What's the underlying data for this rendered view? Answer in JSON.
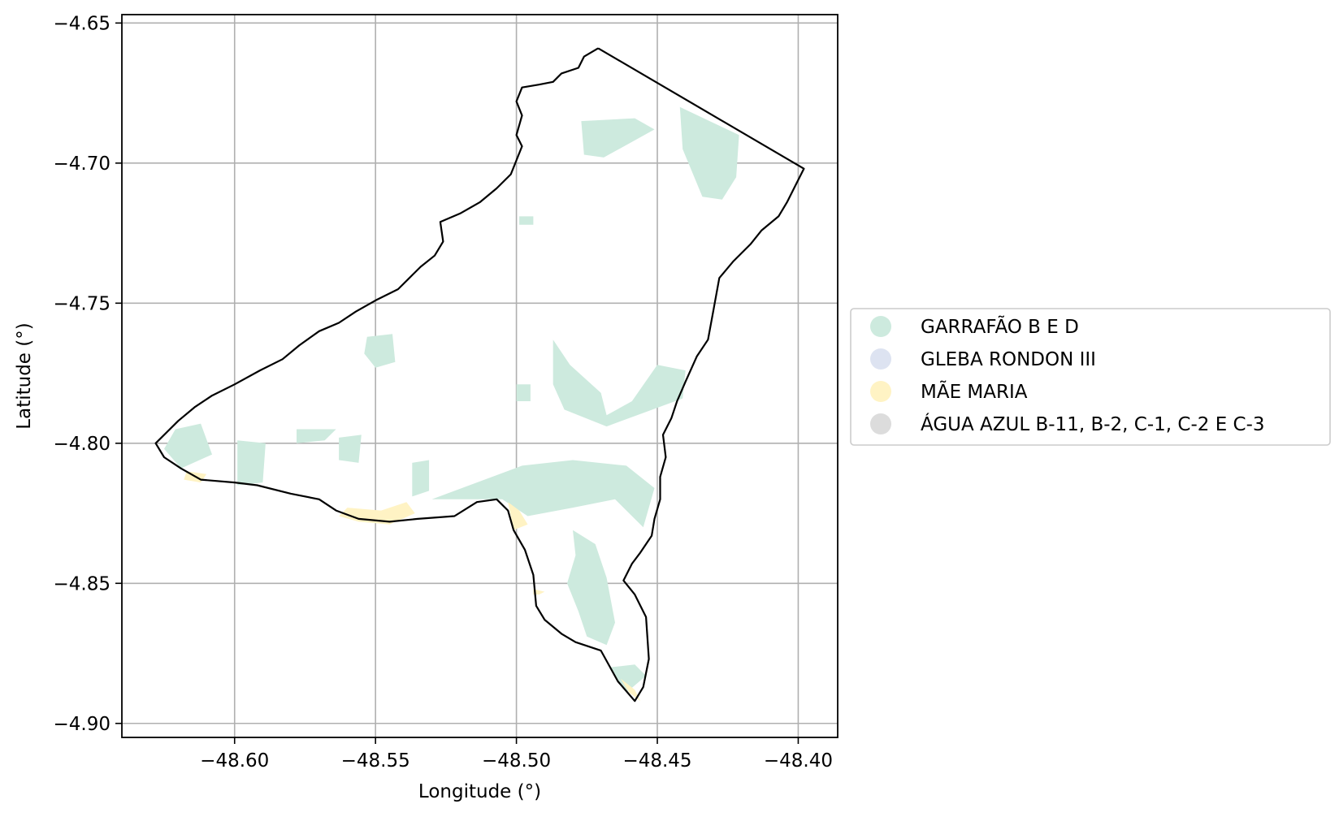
{
  "colors": {
    "garrafao": "#cdeade",
    "gleba_rondon": "#dde3f1",
    "mae_maria": "#fff3c4",
    "agua_azul": "#dcdcdc",
    "boundary": "#000000",
    "grid": "#b0b0b0"
  },
  "axes": {
    "xlabel": "Longitude (°)",
    "ylabel": "Latitude (°)",
    "xlim": [
      -48.64,
      -48.386
    ],
    "ylim": [
      -4.905,
      -4.647
    ],
    "xticks": [
      {
        "value": -48.6,
        "label": "−48.60"
      },
      {
        "value": -48.55,
        "label": "−48.55"
      },
      {
        "value": -48.5,
        "label": "−48.50"
      },
      {
        "value": -48.45,
        "label": "−48.45"
      },
      {
        "value": -48.4,
        "label": "−48.40"
      }
    ],
    "yticks": [
      {
        "value": -4.65,
        "label": "−4.65"
      },
      {
        "value": -4.7,
        "label": "−4.70"
      },
      {
        "value": -4.75,
        "label": "−4.75"
      },
      {
        "value": -4.8,
        "label": "−4.80"
      },
      {
        "value": -4.85,
        "label": "−4.85"
      },
      {
        "value": -4.9,
        "label": "−4.90"
      }
    ],
    "grid": true
  },
  "legend": {
    "placement": "right",
    "items": [
      {
        "label": "GARRAFÃO B E D",
        "color": "#cdeade"
      },
      {
        "label": "GLEBA RONDON III",
        "color": "#dde3f1"
      },
      {
        "label": "MÃE MARIA",
        "color": "#fff3c4"
      },
      {
        "label": "ÁGUA AZUL B-11, B-2, C-1, C-2 E C-3",
        "color": "#dcdcdc"
      }
    ]
  },
  "map": {
    "boundary": [
      [
        -48.471,
        -4.659
      ],
      [
        -48.476,
        -4.662
      ],
      [
        -48.478,
        -4.666
      ],
      [
        -48.484,
        -4.668
      ],
      [
        -48.487,
        -4.671
      ],
      [
        -48.492,
        -4.672
      ],
      [
        -48.498,
        -4.673
      ],
      [
        -48.5,
        -4.678
      ],
      [
        -48.498,
        -4.683
      ],
      [
        -48.5,
        -4.69
      ],
      [
        -48.498,
        -4.694
      ],
      [
        -48.5,
        -4.699
      ],
      [
        -48.502,
        -4.704
      ],
      [
        -48.507,
        -4.709
      ],
      [
        -48.513,
        -4.714
      ],
      [
        -48.52,
        -4.718
      ],
      [
        -48.527,
        -4.721
      ],
      [
        -48.526,
        -4.728
      ],
      [
        -48.529,
        -4.733
      ],
      [
        -48.534,
        -4.737
      ],
      [
        -48.538,
        -4.741
      ],
      [
        -48.542,
        -4.745
      ],
      [
        -48.55,
        -4.749
      ],
      [
        -48.557,
        -4.753
      ],
      [
        -48.563,
        -4.757
      ],
      [
        -48.57,
        -4.76
      ],
      [
        -48.577,
        -4.765
      ],
      [
        -48.583,
        -4.77
      ],
      [
        -48.591,
        -4.774
      ],
      [
        -48.6,
        -4.779
      ],
      [
        -48.608,
        -4.783
      ],
      [
        -48.614,
        -4.787
      ],
      [
        -48.62,
        -4.792
      ],
      [
        -48.624,
        -4.796
      ],
      [
        -48.628,
        -4.8
      ],
      [
        -48.625,
        -4.805
      ],
      [
        -48.619,
        -4.809
      ],
      [
        -48.612,
        -4.813
      ],
      [
        -48.6,
        -4.814
      ],
      [
        -48.592,
        -4.815
      ],
      [
        -48.58,
        -4.818
      ],
      [
        -48.57,
        -4.82
      ],
      [
        -48.564,
        -4.824
      ],
      [
        -48.556,
        -4.827
      ],
      [
        -48.545,
        -4.828
      ],
      [
        -48.535,
        -4.827
      ],
      [
        -48.522,
        -4.826
      ],
      [
        -48.514,
        -4.821
      ],
      [
        -48.507,
        -4.82
      ],
      [
        -48.503,
        -4.824
      ],
      [
        -48.501,
        -4.831
      ],
      [
        -48.497,
        -4.838
      ],
      [
        -48.494,
        -4.847
      ],
      [
        -48.493,
        -4.858
      ],
      [
        -48.49,
        -4.863
      ],
      [
        -48.484,
        -4.868
      ],
      [
        -48.479,
        -4.871
      ],
      [
        -48.47,
        -4.874
      ],
      [
        -48.464,
        -4.885
      ],
      [
        -48.458,
        -4.892
      ],
      [
        -48.455,
        -4.887
      ],
      [
        -48.453,
        -4.877
      ],
      [
        -48.454,
        -4.862
      ],
      [
        -48.458,
        -4.854
      ],
      [
        -48.462,
        -4.849
      ],
      [
        -48.459,
        -4.843
      ],
      [
        -48.456,
        -4.839
      ],
      [
        -48.452,
        -4.833
      ],
      [
        -48.451,
        -4.827
      ],
      [
        -48.449,
        -4.82
      ],
      [
        -48.449,
        -4.812
      ],
      [
        -48.447,
        -4.805
      ],
      [
        -48.448,
        -4.797
      ],
      [
        -48.445,
        -4.791
      ],
      [
        -48.443,
        -4.785
      ],
      [
        -48.44,
        -4.778
      ],
      [
        -48.436,
        -4.769
      ],
      [
        -48.432,
        -4.763
      ],
      [
        -48.43,
        -4.752
      ],
      [
        -48.428,
        -4.741
      ],
      [
        -48.423,
        -4.735
      ],
      [
        -48.417,
        -4.729
      ],
      [
        -48.413,
        -4.724
      ],
      [
        -48.407,
        -4.719
      ],
      [
        -48.404,
        -4.714
      ],
      [
        -48.401,
        -4.708
      ],
      [
        -48.398,
        -4.702
      ],
      [
        -48.471,
        -4.659
      ]
    ],
    "regions": [
      {
        "category": "garrafao",
        "points": [
          [
            -48.477,
            -4.685
          ],
          [
            -48.458,
            -4.684
          ],
          [
            -48.451,
            -4.688
          ],
          [
            -48.469,
            -4.698
          ],
          [
            -48.476,
            -4.697
          ]
        ]
      },
      {
        "category": "garrafao",
        "points": [
          [
            -48.442,
            -4.68
          ],
          [
            -48.421,
            -4.69
          ],
          [
            -48.422,
            -4.705
          ],
          [
            -48.427,
            -4.713
          ],
          [
            -48.434,
            -4.712
          ],
          [
            -48.441,
            -4.695
          ]
        ]
      },
      {
        "category": "garrafao",
        "points": [
          [
            -48.499,
            -4.719
          ],
          [
            -48.494,
            -4.719
          ],
          [
            -48.494,
            -4.722
          ],
          [
            -48.499,
            -4.722
          ]
        ]
      },
      {
        "category": "garrafao",
        "points": [
          [
            -48.553,
            -4.762
          ],
          [
            -48.544,
            -4.761
          ],
          [
            -48.543,
            -4.771
          ],
          [
            -48.55,
            -4.773
          ],
          [
            -48.554,
            -4.768
          ]
        ]
      },
      {
        "category": "garrafao",
        "points": [
          [
            -48.487,
            -4.763
          ],
          [
            -48.481,
            -4.772
          ],
          [
            -48.47,
            -4.782
          ],
          [
            -48.468,
            -4.79
          ],
          [
            -48.459,
            -4.785
          ],
          [
            -48.45,
            -4.772
          ],
          [
            -48.44,
            -4.774
          ],
          [
            -48.441,
            -4.784
          ],
          [
            -48.468,
            -4.794
          ],
          [
            -48.483,
            -4.788
          ],
          [
            -48.487,
            -4.779
          ]
        ]
      },
      {
        "category": "garrafao",
        "points": [
          [
            -48.5,
            -4.779
          ],
          [
            -48.495,
            -4.779
          ],
          [
            -48.495,
            -4.785
          ],
          [
            -48.5,
            -4.785
          ]
        ]
      },
      {
        "category": "garrafao",
        "points": [
          [
            -48.621,
            -4.795
          ],
          [
            -48.612,
            -4.793
          ],
          [
            -48.608,
            -4.804
          ],
          [
            -48.619,
            -4.809
          ],
          [
            -48.625,
            -4.802
          ]
        ]
      },
      {
        "category": "garrafao",
        "points": [
          [
            -48.599,
            -4.799
          ],
          [
            -48.589,
            -4.8
          ],
          [
            -48.59,
            -4.814
          ],
          [
            -48.599,
            -4.815
          ]
        ]
      },
      {
        "category": "garrafao",
        "points": [
          [
            -48.578,
            -4.795
          ],
          [
            -48.564,
            -4.795
          ],
          [
            -48.568,
            -4.799
          ],
          [
            -48.578,
            -4.8
          ]
        ]
      },
      {
        "category": "garrafao",
        "points": [
          [
            -48.563,
            -4.798
          ],
          [
            -48.555,
            -4.797
          ],
          [
            -48.556,
            -4.807
          ],
          [
            -48.563,
            -4.806
          ]
        ]
      },
      {
        "category": "garrafao",
        "points": [
          [
            -48.537,
            -4.807
          ],
          [
            -48.531,
            -4.806
          ],
          [
            -48.531,
            -4.817
          ],
          [
            -48.537,
            -4.819
          ]
        ]
      },
      {
        "category": "garrafao",
        "points": [
          [
            -48.53,
            -4.82
          ],
          [
            -48.498,
            -4.808
          ],
          [
            -48.48,
            -4.806
          ],
          [
            -48.461,
            -4.808
          ],
          [
            -48.451,
            -4.816
          ],
          [
            -48.455,
            -4.83
          ],
          [
            -48.465,
            -4.82
          ],
          [
            -48.48,
            -4.823
          ],
          [
            -48.496,
            -4.826
          ],
          [
            -48.505,
            -4.82
          ],
          [
            -48.519,
            -4.82
          ]
        ]
      },
      {
        "category": "garrafao",
        "points": [
          [
            -48.48,
            -4.831
          ],
          [
            -48.472,
            -4.836
          ],
          [
            -48.468,
            -4.848
          ],
          [
            -48.465,
            -4.864
          ],
          [
            -48.468,
            -4.872
          ],
          [
            -48.475,
            -4.869
          ],
          [
            -48.478,
            -4.86
          ],
          [
            -48.482,
            -4.85
          ],
          [
            -48.479,
            -4.84
          ]
        ]
      },
      {
        "category": "garrafao",
        "points": [
          [
            -48.467,
            -4.88
          ],
          [
            -48.458,
            -4.879
          ],
          [
            -48.454,
            -4.883
          ],
          [
            -48.461,
            -4.889
          ]
        ]
      },
      {
        "category": "mae_maria",
        "points": [
          [
            -48.56,
            -4.823
          ],
          [
            -48.548,
            -4.824
          ],
          [
            -48.539,
            -4.821
          ],
          [
            -48.536,
            -4.825
          ],
          [
            -48.545,
            -4.829
          ],
          [
            -48.556,
            -4.828
          ],
          [
            -48.563,
            -4.826
          ]
        ]
      },
      {
        "category": "mae_maria",
        "points": [
          [
            -48.503,
            -4.821
          ],
          [
            -48.499,
            -4.824
          ],
          [
            -48.496,
            -4.829
          ],
          [
            -48.501,
            -4.831
          ],
          [
            -48.502,
            -4.826
          ]
        ]
      },
      {
        "category": "mae_maria",
        "points": [
          [
            -48.494,
            -4.852
          ],
          [
            -48.49,
            -4.853
          ],
          [
            -48.492,
            -4.854
          ],
          [
            -48.494,
            -4.854
          ]
        ]
      },
      {
        "category": "mae_maria",
        "points": [
          [
            -48.617,
            -4.81
          ],
          [
            -48.61,
            -4.811
          ],
          [
            -48.612,
            -4.814
          ],
          [
            -48.618,
            -4.813
          ]
        ]
      },
      {
        "category": "mae_maria",
        "points": [
          [
            -48.463,
            -4.884
          ],
          [
            -48.458,
            -4.888
          ],
          [
            -48.456,
            -4.892
          ],
          [
            -48.46,
            -4.889
          ]
        ]
      }
    ]
  }
}
